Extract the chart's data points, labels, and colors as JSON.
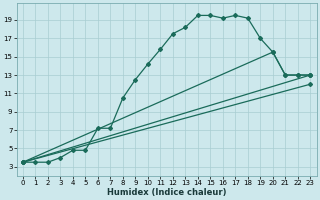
{
  "xlabel": "Humidex (Indice chaleur)",
  "bg_color": "#cde8ec",
  "grid_color": "#a8cdd2",
  "line_color": "#1a6b5a",
  "x_ticks": [
    0,
    1,
    2,
    3,
    4,
    5,
    6,
    7,
    8,
    9,
    10,
    11,
    12,
    13,
    14,
    15,
    16,
    17,
    18,
    19,
    20,
    21,
    22,
    23
  ],
  "y_ticks": [
    3,
    5,
    7,
    9,
    11,
    13,
    15,
    17,
    19
  ],
  "xlim": [
    -0.5,
    23.5
  ],
  "ylim": [
    2.0,
    20.8
  ],
  "line1_x": [
    0,
    1,
    2,
    3,
    4,
    5,
    6,
    7,
    8,
    9,
    10,
    11,
    12,
    13,
    14,
    15,
    16,
    17,
    18,
    19,
    20,
    21,
    22,
    23
  ],
  "line1_y": [
    3.5,
    3.5,
    3.5,
    4.0,
    4.8,
    4.8,
    7.2,
    7.2,
    10.5,
    12.5,
    14.2,
    15.8,
    17.5,
    18.2,
    19.5,
    19.5,
    19.2,
    19.5,
    19.2,
    17.0,
    15.5,
    13.0,
    13.0,
    13.0
  ],
  "line2_x": [
    0,
    20,
    21,
    22,
    23
  ],
  "line2_y": [
    3.5,
    15.5,
    13.0,
    13.0,
    13.0
  ],
  "line3_x": [
    0,
    23
  ],
  "line3_y": [
    3.5,
    13.0
  ],
  "line4_x": [
    0,
    23
  ],
  "line4_y": [
    3.5,
    12.0
  ],
  "marker": "D",
  "markersize": 2.0,
  "linewidth": 0.9,
  "tick_fontsize": 5.0,
  "xlabel_fontsize": 6.0
}
